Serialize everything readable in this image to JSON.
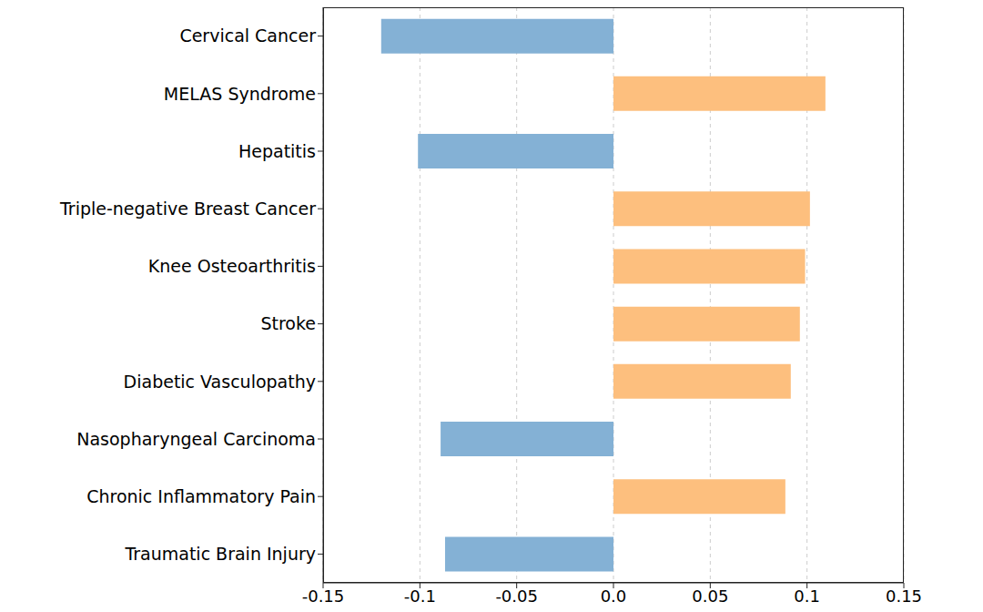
{
  "chart_data": {
    "type": "bar",
    "orientation": "horizontal",
    "categories": [
      "Cervical Cancer",
      "MELAS Syndrome",
      "Hepatitis",
      "Triple-negative Breast Cancer",
      "Knee Osteoarthritis",
      "Stroke",
      "Diabetic Vasculopathy",
      "Nasopharyngeal Carcinoma",
      "Chronic Inflammatory Pain",
      "Traumatic Brain Injury"
    ],
    "values": [
      -0.12,
      0.1095,
      -0.101,
      0.1015,
      0.099,
      0.0963,
      0.0916,
      -0.0893,
      0.0888,
      -0.087
    ],
    "colors": [
      "#84b1d5",
      "#fdbf7e",
      "#84b1d5",
      "#fdbf7e",
      "#fdbf7e",
      "#fdbf7e",
      "#fdbf7e",
      "#84b1d5",
      "#fdbf7e",
      "#84b1d5"
    ],
    "xlim": [
      -0.15,
      0.15
    ],
    "xticks": [
      -0.15,
      -0.1,
      -0.05,
      {
        "value": 0,
        "label": "0.0"
      },
      0.05,
      0.1,
      0.15
    ],
    "grid": true
  }
}
